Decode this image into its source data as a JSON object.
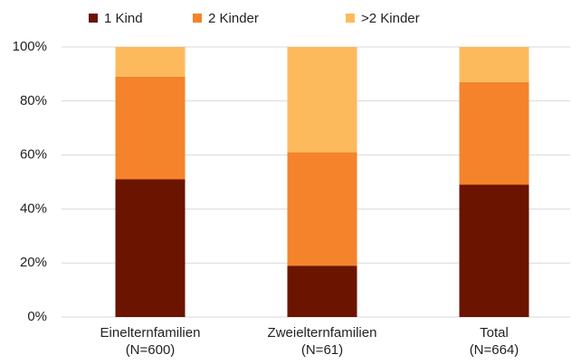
{
  "chart_data": {
    "type": "stacked_bar",
    "categories": [
      "Einelternfamilien\n(N=600)",
      "Zweielternfamilien\n(N=61)",
      "Total\n(N=664)"
    ],
    "series": [
      {
        "name": "1 Kind",
        "color": "#6b1400",
        "values": [
          51,
          19,
          49
        ]
      },
      {
        "name": "2 Kinder",
        "color": "#f5832b",
        "values": [
          38,
          42,
          38
        ]
      },
      {
        "name": ">2 Kinder",
        "color": "#fdba5c",
        "values": [
          11,
          39,
          13
        ]
      }
    ],
    "ylim": [
      0,
      100
    ],
    "yticks": [
      {
        "value": 0,
        "label": "0%"
      },
      {
        "value": 20,
        "label": "20%"
      },
      {
        "value": 40,
        "label": "40%"
      },
      {
        "value": 60,
        "label": "60%"
      },
      {
        "value": 80,
        "label": "80%"
      },
      {
        "value": 100,
        "label": "100%"
      }
    ],
    "grid": true,
    "legend": "top"
  }
}
